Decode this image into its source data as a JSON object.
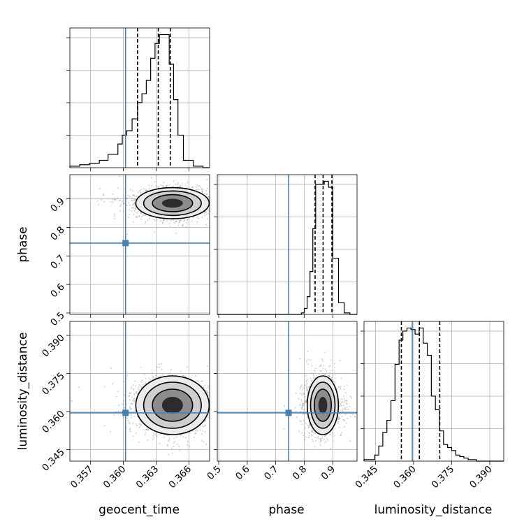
{
  "chart_data": {
    "type": "corner",
    "parameters": [
      "geocent_time",
      "phase",
      "luminosity_distance"
    ],
    "truth_color": "#4682b4",
    "truths": {
      "geocent_time": 0.3602,
      "phase": 0.745,
      "luminosity_distance": 0.3595
    },
    "ranges": {
      "geocent_time": [
        0.3551,
        0.3679
      ],
      "phase": [
        0.495,
        0.985
      ],
      "luminosity_distance": [
        0.3405,
        0.3955
      ]
    },
    "ticks": {
      "geocent_time": [
        "0.357",
        "0.360",
        "0.363",
        "0.366"
      ],
      "phase": [
        "0.5",
        "0.6",
        "0.7",
        "0.8",
        "0.9"
      ],
      "luminosity_distance": [
        "0.345",
        "0.360",
        "0.375",
        "0.390"
      ]
    },
    "quantiles": {
      "geocent_time": [
        0.3613,
        0.3632,
        0.3643
      ],
      "phase": [
        0.838,
        0.866,
        0.897
      ],
      "luminosity_distance": [
        0.3552,
        0.3623,
        0.3703
      ]
    },
    "histograms": {
      "geocent_time": {
        "bin_edges": [
          0.3551,
          0.356,
          0.3569,
          0.3578,
          0.3586,
          0.3595,
          0.3599,
          0.3603,
          0.3608,
          0.3613,
          0.3617,
          0.3621,
          0.3625,
          0.3629,
          0.3633,
          0.3638,
          0.3642,
          0.3646,
          0.365,
          0.3655,
          0.3664,
          0.3673,
          0.3679
        ],
        "counts": [
          1,
          2,
          3,
          5,
          9,
          16,
          22,
          25,
          33,
          44,
          50,
          59,
          74,
          84,
          90,
          90,
          70,
          46,
          22,
          5,
          1,
          0
        ]
      },
      "phase": {
        "bin_edges": [
          0.495,
          0.79,
          0.8,
          0.81,
          0.82,
          0.83,
          0.84,
          0.855,
          0.87,
          0.885,
          0.9,
          0.92,
          0.94,
          0.96,
          0.985
        ],
        "counts": [
          0,
          1,
          4,
          12,
          29,
          58,
          88,
          88,
          90,
          86,
          38,
          8,
          1,
          0
        ]
      },
      "luminosity_distance": {
        "bin_edges": [
          0.3405,
          0.3447,
          0.3463,
          0.3479,
          0.3495,
          0.3511,
          0.3527,
          0.3543,
          0.3558,
          0.3574,
          0.359,
          0.3606,
          0.3622,
          0.3638,
          0.3654,
          0.367,
          0.3686,
          0.3702,
          0.3718,
          0.3734,
          0.375,
          0.3766,
          0.3782,
          0.3798,
          0.3815,
          0.3831,
          0.3847,
          0.3885,
          0.3955
        ],
        "counts": [
          1,
          4,
          10,
          19,
          27,
          40,
          64,
          80,
          86,
          88,
          87,
          84,
          88,
          78,
          70,
          43,
          34,
          20,
          11,
          9,
          7,
          4,
          3,
          2,
          1,
          1,
          0,
          0
        ]
      }
    },
    "joint": [
      {
        "x": "geocent_time",
        "y": "phase",
        "peak": [
          0.3645,
          0.885
        ],
        "spread": [
          0.0016,
          0.026
        ],
        "samples": 2000
      },
      {
        "x": "geocent_time",
        "y": "luminosity_distance",
        "peak": [
          0.3645,
          0.3625
        ],
        "spread": [
          0.0016,
          0.0055
        ],
        "samples": 2000
      },
      {
        "x": "phase",
        "y": "luminosity_distance",
        "peak": [
          0.865,
          0.3625
        ],
        "spread": [
          0.026,
          0.0055
        ],
        "samples": 2000
      }
    ]
  }
}
